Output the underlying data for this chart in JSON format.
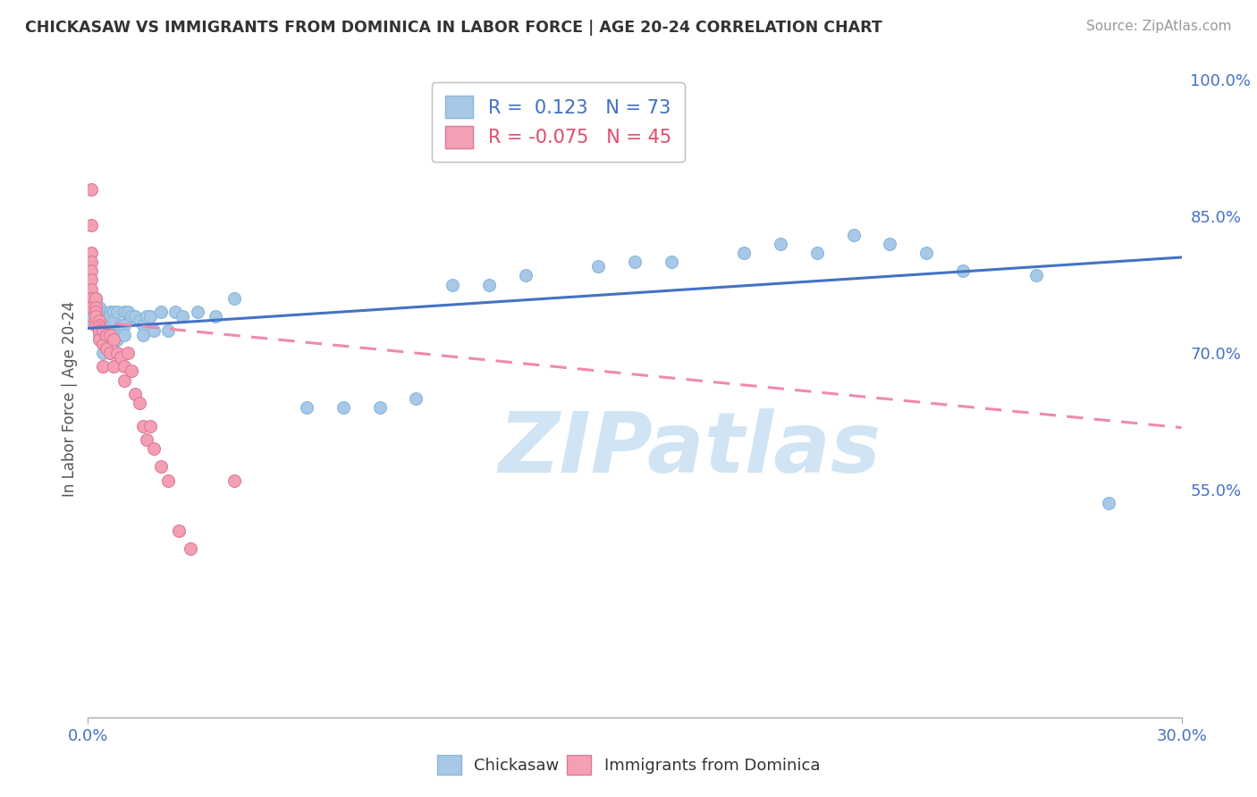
{
  "title": "CHICKASAW VS IMMIGRANTS FROM DOMINICA IN LABOR FORCE | AGE 20-24 CORRELATION CHART",
  "source": "Source: ZipAtlas.com",
  "ylabel": "In Labor Force | Age 20-24",
  "xlim": [
    0.0,
    0.3
  ],
  "ylim": [
    0.3,
    1.0
  ],
  "blue_R": 0.123,
  "blue_N": 73,
  "pink_R": -0.075,
  "pink_N": 45,
  "blue_color": "#a8c8e8",
  "pink_color": "#f4a0b4",
  "blue_line_color": "#4472c4",
  "pink_line_color": "#f08aaa",
  "watermark": "ZIPatlas",
  "watermark_color": "#d0e4f4",
  "background_color": "#ffffff",
  "grid_color": "#dddddd",
  "right_yticks": [
    0.55,
    0.7,
    0.85,
    1.0
  ],
  "right_ytick_labels": [
    "55.0%",
    "70.0%",
    "85.0%",
    "100.0%"
  ],
  "blue_line_x0": 0.0,
  "blue_line_y0": 0.727,
  "blue_line_x1": 0.3,
  "blue_line_y1": 0.805,
  "pink_line_x0": 0.0,
  "pink_line_y0": 0.735,
  "pink_line_x1": 0.3,
  "pink_line_y1": 0.618,
  "blue_scatter_x": [
    0.001,
    0.001,
    0.001,
    0.001,
    0.001,
    0.001,
    0.002,
    0.002,
    0.002,
    0.002,
    0.002,
    0.003,
    0.003,
    0.003,
    0.003,
    0.003,
    0.003,
    0.004,
    0.004,
    0.004,
    0.004,
    0.005,
    0.005,
    0.005,
    0.006,
    0.006,
    0.006,
    0.006,
    0.007,
    0.007,
    0.007,
    0.008,
    0.008,
    0.009,
    0.01,
    0.01,
    0.01,
    0.011,
    0.012,
    0.013,
    0.014,
    0.015,
    0.015,
    0.016,
    0.017,
    0.018,
    0.02,
    0.022,
    0.024,
    0.026,
    0.03,
    0.035,
    0.04,
    0.06,
    0.07,
    0.08,
    0.09,
    0.1,
    0.11,
    0.12,
    0.14,
    0.15,
    0.16,
    0.18,
    0.19,
    0.2,
    0.21,
    0.22,
    0.23,
    0.24,
    0.26,
    0.28
  ],
  "blue_scatter_y": [
    0.76,
    0.755,
    0.75,
    0.745,
    0.74,
    0.735,
    0.76,
    0.755,
    0.75,
    0.74,
    0.735,
    0.75,
    0.74,
    0.735,
    0.73,
    0.725,
    0.72,
    0.745,
    0.735,
    0.725,
    0.7,
    0.73,
    0.72,
    0.71,
    0.745,
    0.74,
    0.73,
    0.7,
    0.745,
    0.735,
    0.72,
    0.745,
    0.715,
    0.73,
    0.745,
    0.73,
    0.72,
    0.745,
    0.74,
    0.74,
    0.735,
    0.73,
    0.72,
    0.74,
    0.74,
    0.725,
    0.745,
    0.725,
    0.745,
    0.74,
    0.745,
    0.74,
    0.76,
    0.64,
    0.64,
    0.64,
    0.65,
    0.775,
    0.775,
    0.785,
    0.795,
    0.8,
    0.8,
    0.81,
    0.82,
    0.81,
    0.83,
    0.82,
    0.81,
    0.79,
    0.785,
    0.535
  ],
  "pink_scatter_x": [
    0.001,
    0.001,
    0.001,
    0.001,
    0.001,
    0.001,
    0.001,
    0.001,
    0.001,
    0.002,
    0.002,
    0.002,
    0.002,
    0.002,
    0.003,
    0.003,
    0.003,
    0.003,
    0.004,
    0.004,
    0.004,
    0.005,
    0.005,
    0.006,
    0.006,
    0.007,
    0.007,
    0.008,
    0.009,
    0.01,
    0.01,
    0.011,
    0.012,
    0.013,
    0.014,
    0.015,
    0.016,
    0.017,
    0.018,
    0.02,
    0.022,
    0.025,
    0.028,
    0.04
  ],
  "pink_scatter_y": [
    0.88,
    0.84,
    0.81,
    0.8,
    0.79,
    0.78,
    0.77,
    0.76,
    0.75,
    0.76,
    0.75,
    0.745,
    0.74,
    0.73,
    0.735,
    0.73,
    0.725,
    0.715,
    0.725,
    0.71,
    0.685,
    0.72,
    0.705,
    0.72,
    0.7,
    0.715,
    0.685,
    0.7,
    0.695,
    0.685,
    0.67,
    0.7,
    0.68,
    0.655,
    0.645,
    0.62,
    0.605,
    0.62,
    0.595,
    0.575,
    0.56,
    0.505,
    0.485,
    0.56
  ]
}
